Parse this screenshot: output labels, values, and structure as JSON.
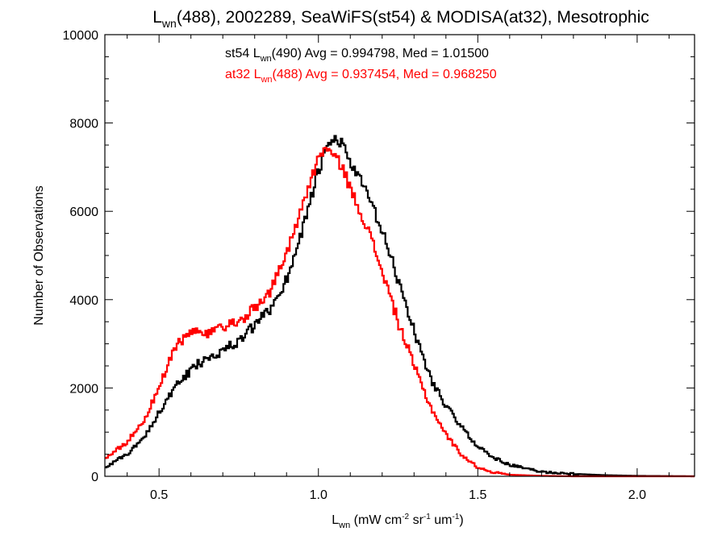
{
  "chart_data": {
    "type": "line",
    "title": {
      "main": "L",
      "sub": "wn",
      "rest": "(488), 2002289, SeaWiFS(st54) & MODISA(at32), Mesotrophic"
    },
    "xlabel": {
      "main": "L",
      "sub": "wn",
      "rest": " (mW cm",
      "sup1": "-2",
      "mid": " sr",
      "sup2": "-1",
      "mid2": " um",
      "sup3": "-1",
      "end": ")"
    },
    "ylabel": "Number of Observations",
    "xlim": [
      0.33,
      2.18
    ],
    "ylim": [
      0,
      10000
    ],
    "x_ticks": [
      0.5,
      1.0,
      1.5,
      2.0
    ],
    "x_tick_labels": [
      "0.5",
      "1.0",
      "1.5",
      "2.0"
    ],
    "y_ticks": [
      0,
      2000,
      4000,
      6000,
      8000,
      10000
    ],
    "y_tick_labels": [
      "0",
      "2000",
      "4000",
      "6000",
      "8000",
      "10000"
    ],
    "grid": false,
    "annotations": [
      {
        "id": "st54",
        "pre": "st54 L",
        "sub": "wn",
        "post": "(490) Avg = 0.994798, Med = 1.01500",
        "color": "#000000"
      },
      {
        "id": "at32",
        "pre": "at32 L",
        "sub": "wn",
        "post": "(488) Avg = 0.937454, Med = 0.968250",
        "color": "#ff0000"
      }
    ],
    "series": [
      {
        "id": "st54",
        "color": "#000000",
        "step": 0.005,
        "x_start": 0.33,
        "points": [
          [
            0.33,
            200
          ],
          [
            0.4,
            500
          ],
          [
            0.45,
            850
          ],
          [
            0.5,
            1450
          ],
          [
            0.55,
            2000
          ],
          [
            0.6,
            2400
          ],
          [
            0.65,
            2700
          ],
          [
            0.7,
            2850
          ],
          [
            0.75,
            3050
          ],
          [
            0.8,
            3400
          ],
          [
            0.85,
            3800
          ],
          [
            0.9,
            4450
          ],
          [
            0.95,
            5600
          ],
          [
            1.0,
            6900
          ],
          [
            1.03,
            7450
          ],
          [
            1.05,
            7650
          ],
          [
            1.08,
            7500
          ],
          [
            1.1,
            7100
          ],
          [
            1.15,
            6450
          ],
          [
            1.2,
            5550
          ],
          [
            1.25,
            4450
          ],
          [
            1.3,
            3300
          ],
          [
            1.35,
            2250
          ],
          [
            1.4,
            1600
          ],
          [
            1.45,
            1100
          ],
          [
            1.5,
            680
          ],
          [
            1.55,
            420
          ],
          [
            1.6,
            260
          ],
          [
            1.65,
            180
          ],
          [
            1.7,
            100
          ],
          [
            1.8,
            55
          ],
          [
            1.9,
            25
          ],
          [
            2.0,
            10
          ],
          [
            2.18,
            0
          ]
        ]
      },
      {
        "id": "at32",
        "color": "#ff0000",
        "step": 0.005,
        "x_start": 0.33,
        "points": [
          [
            0.33,
            400
          ],
          [
            0.4,
            780
          ],
          [
            0.45,
            1230
          ],
          [
            0.5,
            2000
          ],
          [
            0.55,
            2900
          ],
          [
            0.6,
            3280
          ],
          [
            0.65,
            3200
          ],
          [
            0.7,
            3330
          ],
          [
            0.75,
            3500
          ],
          [
            0.8,
            3800
          ],
          [
            0.85,
            4200
          ],
          [
            0.9,
            5050
          ],
          [
            0.95,
            6150
          ],
          [
            1.0,
            7200
          ],
          [
            1.02,
            7450
          ],
          [
            1.05,
            7250
          ],
          [
            1.08,
            6950
          ],
          [
            1.1,
            6500
          ],
          [
            1.15,
            5700
          ],
          [
            1.2,
            4650
          ],
          [
            1.25,
            3500
          ],
          [
            1.3,
            2500
          ],
          [
            1.35,
            1600
          ],
          [
            1.4,
            950
          ],
          [
            1.45,
            480
          ],
          [
            1.5,
            200
          ],
          [
            1.55,
            90
          ],
          [
            1.6,
            35
          ],
          [
            1.7,
            10
          ],
          [
            1.8,
            0
          ],
          [
            2.18,
            0
          ]
        ]
      }
    ]
  }
}
